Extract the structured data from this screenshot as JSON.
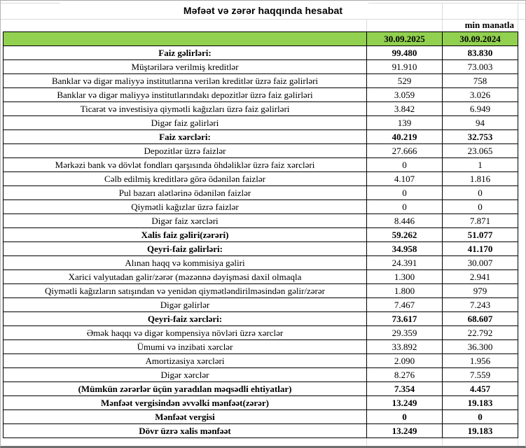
{
  "title": "Məfəət və zərər haqqında hesabat",
  "unit_note": "min manatla",
  "colors": {
    "header_green": "#92D050",
    "table_border": "#000000",
    "gridline": "#d9d9d9"
  },
  "table": {
    "header_label": "",
    "columns": [
      "30.09.2025",
      "30.09.2024"
    ],
    "rows": [
      {
        "label": "Faiz gəlirləri:",
        "y2025": "99.480",
        "y2024": "83.830",
        "bold": true
      },
      {
        "label": "Müştərilərə verilmiş kreditlər",
        "y2025": "91.910",
        "y2024": "73.003",
        "bold": false
      },
      {
        "label": "Banklar və digər maliyyə institutlarına verilən kreditlər üzrə faiz gəlirləri",
        "y2025": "529",
        "y2024": "758",
        "bold": false
      },
      {
        "label": "Banklar və digər maliyyə institutlarındakı depozitlər üzrə faiz gəlirləri",
        "y2025": "3.059",
        "y2024": "3.026",
        "bold": false
      },
      {
        "label": "Ticarət və investisiya qiymətli kağızları üzrə faiz gəlirləri",
        "y2025": "3.842",
        "y2024": "6.949",
        "bold": false
      },
      {
        "label": "Digər faiz gəlirləri",
        "y2025": "139",
        "y2024": "94",
        "bold": false
      },
      {
        "label": "Faiz xərcləri:",
        "y2025": "40.219",
        "y2024": "32.753",
        "bold": true
      },
      {
        "label": "Depozitlər üzrə faizlər",
        "y2025": "27.666",
        "y2024": "23.065",
        "bold": false
      },
      {
        "label": "Mərkəzi bank və dövlət fondları qarşısında öhdəliklər üzrə faiz xərcləri",
        "y2025": "0",
        "y2024": "1",
        "bold": false
      },
      {
        "label": "Cəlb edilmiş kreditlərə görə ödənilən faizlər",
        "y2025": "4.107",
        "y2024": "1.816",
        "bold": false
      },
      {
        "label": "Pul bazarı alətlərinə ödənilən faizlər",
        "y2025": "0",
        "y2024": "0",
        "bold": false
      },
      {
        "label": "Qiymətli kağızlar üzrə faizlər",
        "y2025": "0",
        "y2024": "0",
        "bold": false
      },
      {
        "label": "Digər faiz xərcləri",
        "y2025": "8.446",
        "y2024": "7.871",
        "bold": false
      },
      {
        "label": "Xalis faiz gəliri(zərəri)",
        "y2025": "59.262",
        "y2024": "51.077",
        "bold": true
      },
      {
        "label": "Qeyri-faiz gəlirləri:",
        "y2025": "34.958",
        "y2024": "41.170",
        "bold": true
      },
      {
        "label": "Alınan haqq və kommisiya gəliri",
        "y2025": "24.391",
        "y2024": "30.007",
        "bold": false
      },
      {
        "label": "Xarici valyutadan gəlir/zərər (məzənnə dəyişməsi daxil olmaqla",
        "y2025": "1.300",
        "y2024": "2.941",
        "bold": false
      },
      {
        "label": "Qiymətli kağızların satışından və yenidən qiymətləndirilməsindən gəlir/zərər",
        "y2025": "1.800",
        "y2024": "979",
        "bold": false
      },
      {
        "label": "Digər gəlirlər",
        "y2025": "7.467",
        "y2024": "7.243",
        "bold": false
      },
      {
        "label": "Qeyri-faiz xərcləri:",
        "y2025": "73.617",
        "y2024": "68.607",
        "bold": true
      },
      {
        "label": "Əmək haqqı və digər kompensiya növləri üzrə xərclər",
        "y2025": "29.359",
        "y2024": "22.792",
        "bold": false
      },
      {
        "label": "Ümumi və inzibati xərclər",
        "y2025": "33.892",
        "y2024": "36.300",
        "bold": false
      },
      {
        "label": "Amortizasiya xərcləri",
        "y2025": "2.090",
        "y2024": "1.956",
        "bold": false
      },
      {
        "label": "Digər xərclər",
        "y2025": "8.276",
        "y2024": "7.559",
        "bold": false
      },
      {
        "label": "(Mümkün zərərlər üçün yaradılan məqsədli ehtiyatlar)",
        "y2025": "7.354",
        "y2024": "4.457",
        "bold": true
      },
      {
        "label": "Mənfəət vergisindən əvvəlki mənfəət(zərər)",
        "y2025": "13.249",
        "y2024": "19.183",
        "bold": true
      },
      {
        "label": "Mənfəət vergisi",
        "y2025": "0",
        "y2024": "0",
        "bold": true
      },
      {
        "label": "Dövr üzrə xalis mənfəət",
        "y2025": "13.249",
        "y2024": "19.183",
        "bold": true
      }
    ]
  }
}
